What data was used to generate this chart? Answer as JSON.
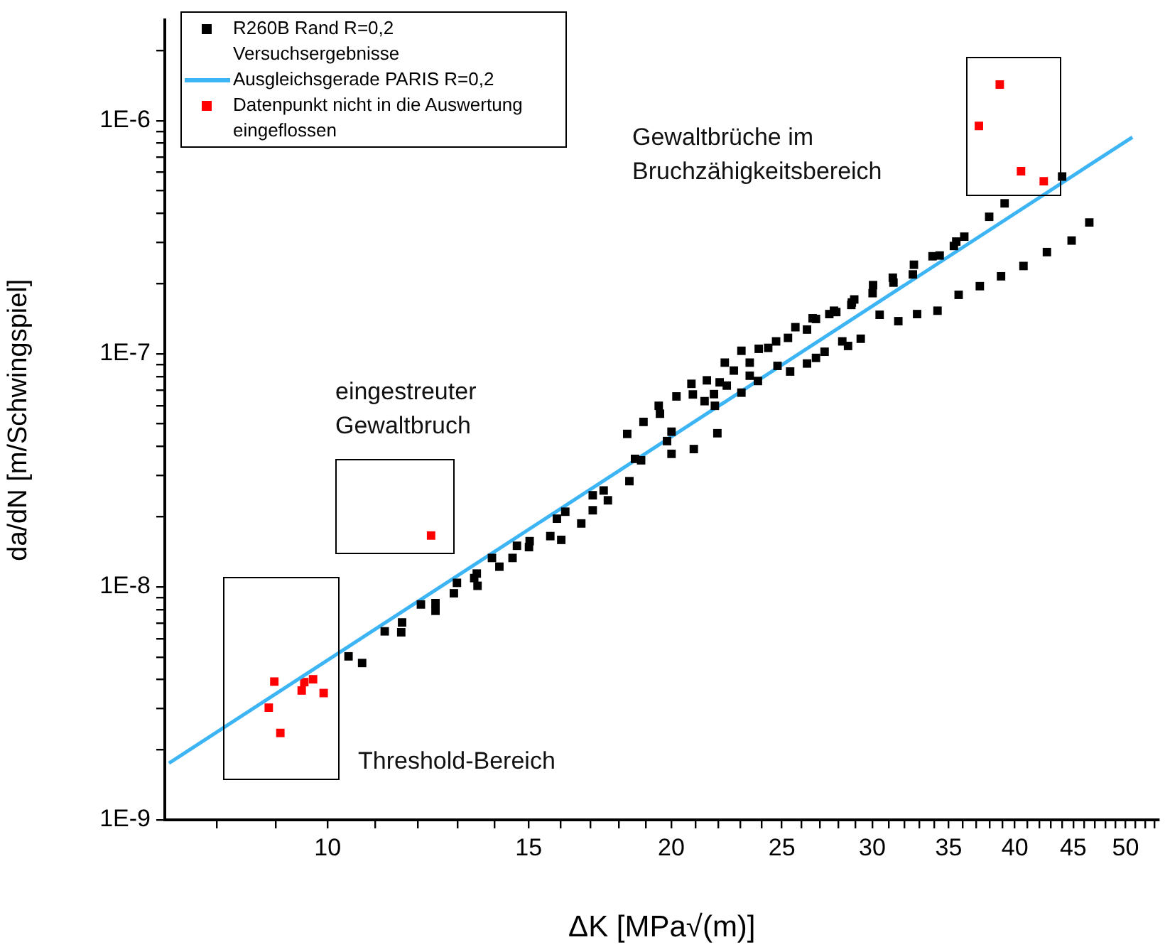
{
  "chart_data": {
    "type": "scatter",
    "xlabel": "ΔK [MPa√(m)]",
    "ylabel": "da/dN [m/Schwingspiel]",
    "log": "xy",
    "grid": false,
    "legend": "top left",
    "marker": "square",
    "xlim": [
      7.2,
      53.5
    ],
    "ylim": [
      1e-09,
      2.7e-06
    ],
    "xticks": [
      {
        "value": 8,
        "label": null
      },
      {
        "value": 9,
        "label": null
      },
      10,
      {
        "value": 11,
        "label": null
      },
      {
        "value": 12,
        "label": null
      },
      {
        "value": 13,
        "label": null
      },
      {
        "value": 14,
        "label": null
      },
      15,
      {
        "value": 16,
        "label": null
      },
      {
        "value": 17,
        "label": null
      },
      {
        "value": 18,
        "label": null
      },
      {
        "value": 19,
        "label": null
      },
      20,
      {
        "value": 21,
        "label": null
      },
      {
        "value": 22,
        "label": null
      },
      {
        "value": 23,
        "label": null
      },
      {
        "value": 24,
        "label": null
      },
      25,
      {
        "value": 26,
        "label": null
      },
      {
        "value": 27,
        "label": null
      },
      {
        "value": 28,
        "label": null
      },
      {
        "value": 29,
        "label": null
      },
      30,
      {
        "value": 31,
        "label": null
      },
      {
        "value": 32,
        "label": null
      },
      {
        "value": 33,
        "label": null
      },
      {
        "value": 34,
        "label": null
      },
      35,
      {
        "value": 36,
        "label": null
      },
      {
        "value": 37,
        "label": null
      },
      {
        "value": 38,
        "label": null
      },
      {
        "value": 39,
        "label": null
      },
      40,
      {
        "value": 41,
        "label": null
      },
      {
        "value": 42,
        "label": null
      },
      {
        "value": 43,
        "label": null
      },
      {
        "value": 44,
        "label": null
      },
      45,
      {
        "value": 46,
        "label": null
      },
      {
        "value": 47,
        "label": null
      },
      {
        "value": 48,
        "label": null
      },
      {
        "value": 49,
        "label": null
      },
      50,
      {
        "value": 51,
        "label": null
      },
      {
        "value": 52,
        "label": null
      },
      {
        "value": 53,
        "label": null
      }
    ],
    "yticks": [
      {
        "value": 1e-09,
        "label": "1E-9"
      },
      {
        "value": 2e-09,
        "label": null
      },
      {
        "value": 3e-09,
        "label": null
      },
      {
        "value": 4e-09,
        "label": null
      },
      {
        "value": 5e-09,
        "label": null
      },
      {
        "value": 6e-09,
        "label": null
      },
      {
        "value": 7e-09,
        "label": null
      },
      {
        "value": 8e-09,
        "label": null
      },
      {
        "value": 9e-09,
        "label": null
      },
      {
        "value": 1e-08,
        "label": "1E-8"
      },
      {
        "value": 2e-08,
        "label": null
      },
      {
        "value": 3e-08,
        "label": null
      },
      {
        "value": 4e-08,
        "label": null
      },
      {
        "value": 5e-08,
        "label": null
      },
      {
        "value": 6e-08,
        "label": null
      },
      {
        "value": 7e-08,
        "label": null
      },
      {
        "value": 8e-08,
        "label": null
      },
      {
        "value": 9e-08,
        "label": null
      },
      {
        "value": 1e-07,
        "label": "1E-7"
      },
      {
        "value": 2e-07,
        "label": null
      },
      {
        "value": 3e-07,
        "label": null
      },
      {
        "value": 4e-07,
        "label": null
      },
      {
        "value": 5e-07,
        "label": null
      },
      {
        "value": 6e-07,
        "label": null
      },
      {
        "value": 7e-07,
        "label": null
      },
      {
        "value": 8e-07,
        "label": null
      },
      {
        "value": 9e-07,
        "label": null
      },
      {
        "value": 1e-06,
        "label": "1E-6"
      },
      {
        "value": 2e-06,
        "label": null
      }
    ],
    "series": [
      {
        "name": "R260B Rand R=0,2 Versuchsergebnisse",
        "color": "#000000",
        "x": [
          10.43,
          10.72,
          11.22,
          11.6,
          11.62,
          12.07,
          12.43,
          12.43,
          12.9,
          12.98,
          13.44,
          13.53,
          13.51,
          13.93,
          14.14,
          14.52,
          14.65,
          15.01,
          15.03,
          15.67,
          16.02,
          15.88,
          16.15,
          16.68,
          17.07,
          17.07,
          17.45,
          17.6,
          18.38,
          18.59,
          18.82,
          18.3,
          18.91,
          19.5,
          19.55,
          20.01,
          19.83,
          20.01,
          20.93,
          21.95,
          20.21,
          20.83,
          20.89,
          21.39,
          21.49,
          21.8,
          21.84,
          22.05,
          22.28,
          22.37,
          22.69,
          23.04,
          23.04,
          23.43,
          23.43,
          23.82,
          23.86,
          24.32,
          24.71,
          24.78,
          25.31,
          25.42,
          25.69,
          26.3,
          26.3,
          26.78,
          27.25,
          26.78,
          27.51,
          27.9,
          28.24,
          28.57,
          28.79,
          28.93,
          29.31,
          30.02,
          30.05,
          30.45,
          31.27,
          31.31,
          31.62,
          32.56,
          32.63,
          32.84,
          33.88,
          34.37,
          34.22,
          35.37,
          35.54,
          35.71,
          36.12,
          37.27,
          37.98,
          38.9,
          39.18,
          40.7,
          42.67,
          44.0,
          44.85,
          46.48,
          26.6,
          28.76,
          27.77
        ],
        "values": [
          5.03e-09,
          4.71e-09,
          6.44e-09,
          6.38e-09,
          7.03e-09,
          8.4e-09,
          8.51e-09,
          7.89e-09,
          9.38e-09,
          1.04e-08,
          1.09e-08,
          1.01e-08,
          1.14e-08,
          1.33e-08,
          1.22e-08,
          1.33e-08,
          1.5e-08,
          1.48e-08,
          1.57e-08,
          1.65e-08,
          1.59e-08,
          1.96e-08,
          2.1e-08,
          1.87e-08,
          2.13e-08,
          2.47e-08,
          2.59e-08,
          2.35e-08,
          2.84e-08,
          3.54e-08,
          3.49e-08,
          4.53e-08,
          5.1e-08,
          5.98e-08,
          5.53e-08,
          4.63e-08,
          4.22e-08,
          3.72e-08,
          3.9e-08,
          4.56e-08,
          6.56e-08,
          7.43e-08,
          6.69e-08,
          6.26e-08,
          7.69e-08,
          6.71e-08,
          5.98e-08,
          7.54e-08,
          9.16e-08,
          7.3e-08,
          8.47e-08,
          6.81e-08,
          1.03e-07,
          9.16e-08,
          8.05e-08,
          7.64e-08,
          1.05e-07,
          1.06e-07,
          1.13e-07,
          8.87e-08,
          1.17e-07,
          8.39e-08,
          1.3e-07,
          1.27e-07,
          9.08e-08,
          9.6e-08,
          1.02e-07,
          1.41e-07,
          1.48e-07,
          1.51e-07,
          1.13e-07,
          1.08e-07,
          1.66e-07,
          1.71e-07,
          1.16e-07,
          1.82e-07,
          1.97e-07,
          1.47e-07,
          2.12e-07,
          2.02e-07,
          1.38e-07,
          2.19e-07,
          2.41e-07,
          1.48e-07,
          2.62e-07,
          2.64e-07,
          1.53e-07,
          2.9e-07,
          3.03e-07,
          1.79e-07,
          3.18e-07,
          1.95e-07,
          3.87e-07,
          2.15e-07,
          4.42e-07,
          2.38e-07,
          2.73e-07,
          5.76e-07,
          3.06e-07,
          3.66e-07,
          1.42e-07,
          1.62e-07,
          1.53e-07
        ]
      },
      {
        "name": "Ausgleichsgerade PARIS R=0,2",
        "type": "line",
        "color": "#3db5f5",
        "marker": "none",
        "x": [
          7.26,
          50.7
        ],
        "values": [
          1.75e-09,
          8.5e-07
        ]
      },
      {
        "name": "Datenpunkt nicht in die Auswertung eingeflossen",
        "color": "#ff0000",
        "x": [
          8.98,
          8.88,
          9.09,
          9.49,
          9.54,
          9.71,
          9.92,
          12.32,
          38.8,
          37.2,
          40.5,
          42.4
        ],
        "values": [
          3.92e-09,
          3.03e-09,
          2.36e-09,
          3.59e-09,
          3.9e-09,
          4.01e-09,
          3.5e-09,
          1.66e-08,
          1.43e-06,
          9.5e-07,
          6.07e-07,
          5.5e-07
        ]
      }
    ],
    "annotations": [
      "eingestreuter Gewaltbruch",
      "Gewaltbrüche im Bruchzähigkeitsbereich",
      "Threshold-Bereich"
    ]
  }
}
